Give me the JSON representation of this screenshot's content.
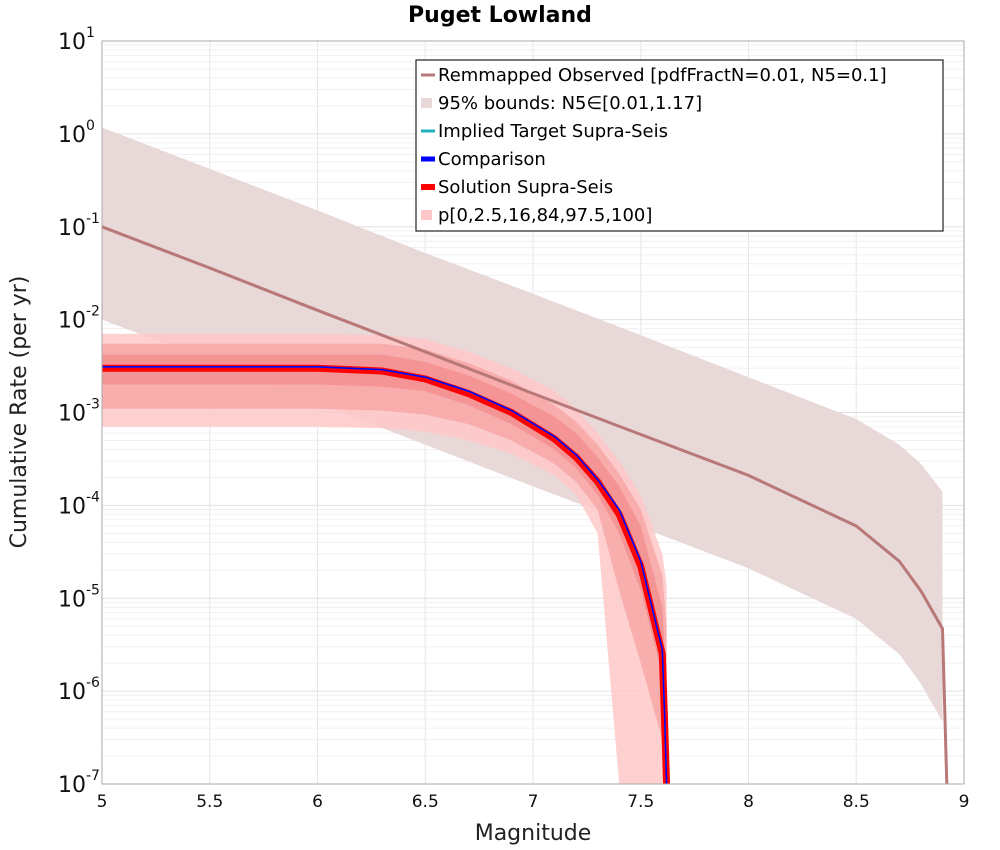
{
  "chart_data": {
    "type": "line",
    "title": "Puget Lowland",
    "xlabel": "Magnitude",
    "ylabel": "Cumulative Rate (per yr)",
    "xlim": [
      5,
      9
    ],
    "ylim": [
      1e-07,
      10
    ],
    "y_scale": "log",
    "grid": true,
    "legend_placement": "top-right",
    "x_ticks": [
      "5",
      "5.5",
      "6",
      "6.5",
      "7",
      "7.5",
      "8",
      "8.5",
      "9"
    ],
    "y_ticks": [
      {
        "base": "10",
        "exp": "1"
      },
      {
        "base": "10",
        "exp": "0"
      },
      {
        "base": "10",
        "exp": "-1"
      },
      {
        "base": "10",
        "exp": "-2"
      },
      {
        "base": "10",
        "exp": "-3"
      },
      {
        "base": "10",
        "exp": "-4"
      },
      {
        "base": "10",
        "exp": "-5"
      },
      {
        "base": "10",
        "exp": "-6"
      },
      {
        "base": "10",
        "exp": "-7"
      }
    ],
    "legend": [
      "Remmapped Observed [pdfFractN=0.01, N5=0.1]",
      "95% bounds: N5∈[0.01,1.17]",
      "Implied Target Supra-Seis",
      "Comparison",
      "Solution Supra-Seis",
      "p[0,2.5,16,84,97.5,100]"
    ],
    "colors": {
      "observed": "#b87878",
      "bounds_fill": "#e8d8d8",
      "implied": "#20b0c0",
      "comparison": "#0000ff",
      "solution": "#ff0000",
      "pct_outer": "#ffc8c8",
      "pct_mid": "#f7a0a0",
      "pct_inner": "#f28a8a"
    },
    "series": [
      {
        "name": "Remmapped Observed [pdfFractN=0.01, N5=0.1]",
        "x": [
          5.0,
          5.5,
          6.0,
          6.5,
          7.0,
          7.5,
          8.0,
          8.5,
          8.7,
          8.8,
          8.9,
          8.92
        ],
        "y": [
          0.1,
          0.036,
          0.0126,
          0.0045,
          0.0016,
          0.00058,
          0.00021,
          6e-05,
          2.5e-05,
          1.2e-05,
          4.7e-06,
          1e-07
        ]
      },
      {
        "name": "95% bounds: N5∈[0.01,1.17]",
        "x": [
          5.0,
          5.5,
          6.0,
          6.5,
          7.0,
          7.5,
          8.0,
          8.5,
          8.7,
          8.8,
          8.9
        ],
        "upper": [
          1.17,
          0.42,
          0.15,
          0.052,
          0.019,
          0.0068,
          0.0024,
          0.00085,
          0.00045,
          0.00028,
          0.00014
        ],
        "lower": [
          0.01,
          0.0036,
          0.00126,
          0.00045,
          0.00016,
          5.8e-05,
          2.1e-05,
          6e-06,
          2.5e-06,
          1.2e-06,
          4.7e-07
        ]
      },
      {
        "name": "Implied Target Supra-Seis",
        "x": [
          5.0,
          6.0,
          6.3,
          6.5,
          6.7,
          6.9,
          7.1,
          7.2,
          7.3,
          7.4,
          7.5,
          7.6,
          7.61,
          7.62
        ],
        "y": [
          0.0031,
          0.0031,
          0.0029,
          0.0024,
          0.0017,
          0.00105,
          0.00055,
          0.00035,
          0.00019,
          9e-05,
          2.5e-05,
          2.8e-06,
          6e-07,
          1e-07
        ]
      },
      {
        "name": "Comparison",
        "x": [
          5.0,
          6.0,
          6.3,
          6.5,
          6.7,
          6.9,
          7.1,
          7.2,
          7.3,
          7.4,
          7.5,
          7.6,
          7.61,
          7.62
        ],
        "y": [
          0.0031,
          0.0031,
          0.0029,
          0.0024,
          0.0017,
          0.00105,
          0.00055,
          0.00035,
          0.00019,
          9e-05,
          2.5e-05,
          2.8e-06,
          6e-07,
          1e-07
        ]
      },
      {
        "name": "Solution Supra-Seis",
        "x": [
          5.0,
          6.0,
          6.3,
          6.5,
          6.7,
          6.9,
          7.1,
          7.2,
          7.3,
          7.4,
          7.5,
          7.6,
          7.61,
          7.62
        ],
        "y": [
          0.003,
          0.003,
          0.0028,
          0.0023,
          0.0016,
          0.001,
          0.00052,
          0.00033,
          0.00018,
          8e-05,
          2.2e-05,
          2.5e-06,
          5e-07,
          1e-07
        ]
      },
      {
        "name": "p[0,2.5,16,84,97.5,100]",
        "x": [
          5.0,
          6.0,
          6.3,
          6.5,
          6.7,
          6.9,
          7.1,
          7.2,
          7.3,
          7.4,
          7.5,
          7.6,
          7.62
        ],
        "p0": [
          0.0007,
          0.0007,
          0.00068,
          0.00062,
          0.0005,
          0.00036,
          0.00021,
          0.00013,
          5e-05,
          1e-07,
          1e-07,
          1e-07,
          1e-07
        ],
        "p2_5": [
          0.0011,
          0.0011,
          0.00105,
          0.00095,
          0.00075,
          0.0005,
          0.00028,
          0.00018,
          9e-05,
          1.2e-05,
          2e-06,
          3e-07,
          1e-07
        ],
        "p16": [
          0.002,
          0.002,
          0.0019,
          0.0017,
          0.0012,
          0.00075,
          0.0004,
          0.00025,
          0.00013,
          5e-05,
          1.2e-05,
          1.5e-06,
          1e-07
        ],
        "p84": [
          0.0042,
          0.0042,
          0.0042,
          0.0035,
          0.0025,
          0.0016,
          0.0009,
          0.0006,
          0.00033,
          0.00016,
          6e-05,
          8e-06,
          1.2e-06
        ],
        "p97_5": [
          0.0055,
          0.0055,
          0.0055,
          0.0048,
          0.0034,
          0.0022,
          0.0012,
          0.0008,
          0.00045,
          0.00022,
          9e-05,
          1.8e-05,
          5e-06
        ],
        "p100": [
          0.007,
          0.007,
          0.0068,
          0.0062,
          0.0045,
          0.003,
          0.0017,
          0.0011,
          0.0006,
          0.0003,
          0.00013,
          3e-05,
          1.4e-05
        ]
      }
    ]
  }
}
